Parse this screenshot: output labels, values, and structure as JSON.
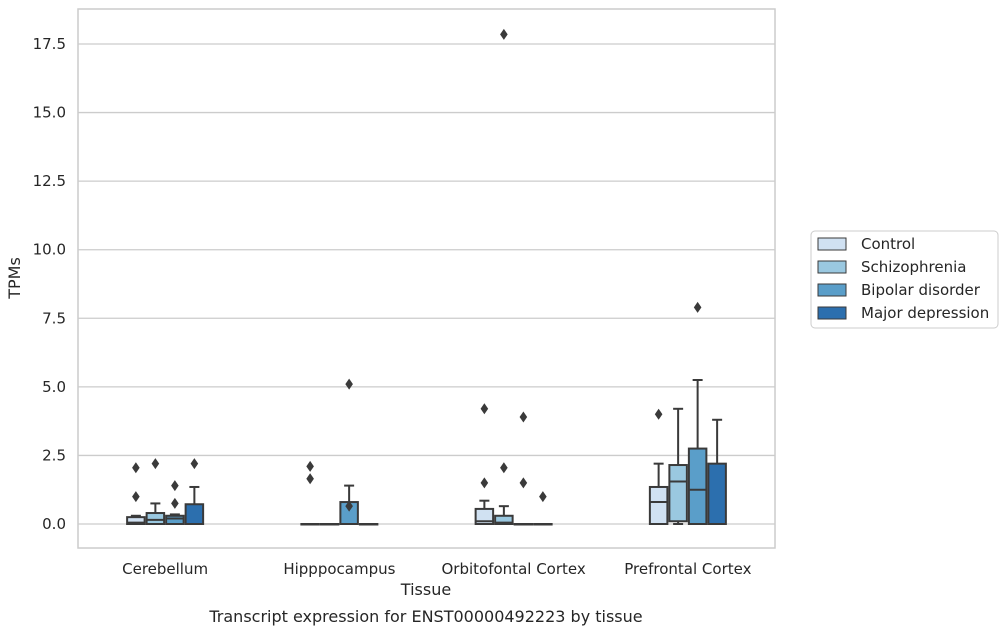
{
  "chart_data": {
    "type": "box",
    "title": "",
    "caption": "Transcript expression for ENST00000492223 by tissue",
    "xlabel": "Tissue",
    "ylabel": "TPMs",
    "ylim": [
      -0.85,
      18.7
    ],
    "yticks": [
      "0.0",
      "2.5",
      "5.0",
      "7.5",
      "10.0",
      "12.5",
      "15.0",
      "17.5"
    ],
    "ytick_values": [
      0,
      2.5,
      5,
      7.5,
      10,
      12.5,
      15,
      17.5
    ],
    "grid": "horizontal",
    "legend_position": "right",
    "categories": [
      "Cerebellum",
      "Hipppocampus",
      "Orbitofontal Cortex",
      "Prefrontal Cortex"
    ],
    "series": [
      {
        "name": "Control",
        "color": "#d0e1f2",
        "boxes": [
          {
            "q1": 0.0,
            "median": 0.05,
            "q3": 0.25,
            "whisker_low": 0.0,
            "whisker_high": 0.3,
            "outliers": [
              1.0,
              2.05
            ]
          },
          {
            "q1": 0.0,
            "median": 0.0,
            "q3": 0.0,
            "whisker_low": 0.0,
            "whisker_high": 0.0,
            "outliers": [
              1.65,
              2.1
            ]
          },
          {
            "q1": 0.0,
            "median": 0.1,
            "q3": 0.55,
            "whisker_low": 0.0,
            "whisker_high": 0.85,
            "outliers": [
              1.5,
              4.2
            ]
          },
          {
            "q1": 0.0,
            "median": 0.8,
            "q3": 1.35,
            "whisker_low": 0.0,
            "whisker_high": 2.2,
            "outliers": [
              4.0
            ]
          }
        ]
      },
      {
        "name": "Schizophrenia",
        "color": "#9ac8e0",
        "boxes": [
          {
            "q1": 0.0,
            "median": 0.15,
            "q3": 0.4,
            "whisker_low": 0.0,
            "whisker_high": 0.75,
            "outliers": [
              2.2
            ]
          },
          {
            "q1": 0.0,
            "median": 0.0,
            "q3": 0.0,
            "whisker_low": 0.0,
            "whisker_high": 0.0,
            "outliers": []
          },
          {
            "q1": 0.0,
            "median": 0.05,
            "q3": 0.3,
            "whisker_low": 0.0,
            "whisker_high": 0.65,
            "outliers": [
              2.05,
              17.85
            ]
          },
          {
            "q1": 0.1,
            "median": 1.55,
            "q3": 2.15,
            "whisker_low": 0.0,
            "whisker_high": 4.2,
            "outliers": []
          }
        ]
      },
      {
        "name": "Bipolar disorder",
        "color": "#5a9ec9",
        "boxes": [
          {
            "q1": 0.0,
            "median": 0.2,
            "q3": 0.3,
            "whisker_low": 0.0,
            "whisker_high": 0.35,
            "outliers": [
              0.75,
              1.4
            ]
          },
          {
            "q1": 0.0,
            "median": 0.0,
            "q3": 0.8,
            "whisker_low": 0.0,
            "whisker_high": 1.4,
            "outliers": [
              0.65,
              5.1
            ]
          },
          {
            "q1": 0.0,
            "median": 0.0,
            "q3": 0.0,
            "whisker_low": 0.0,
            "whisker_high": 0.0,
            "outliers": [
              1.5,
              3.9
            ]
          },
          {
            "q1": 0.0,
            "median": 1.25,
            "q3": 2.75,
            "whisker_low": 0.0,
            "whisker_high": 5.25,
            "outliers": [
              7.9
            ]
          }
        ]
      },
      {
        "name": "Major depression",
        "color": "#2c6fae",
        "boxes": [
          {
            "q1": 0.0,
            "median": 0.0,
            "q3": 0.72,
            "whisker_low": 0.0,
            "whisker_high": 1.35,
            "outliers": [
              2.2
            ]
          },
          {
            "q1": 0.0,
            "median": 0.0,
            "q3": 0.0,
            "whisker_low": 0.0,
            "whisker_high": 0.0,
            "outliers": []
          },
          {
            "q1": 0.0,
            "median": 0.0,
            "q3": 0.0,
            "whisker_low": 0.0,
            "whisker_high": 0.0,
            "outliers": [
              1.0
            ]
          },
          {
            "q1": 0.0,
            "median": 0.0,
            "q3": 2.2,
            "whisker_low": 0.0,
            "whisker_high": 3.8,
            "outliers": []
          }
        ]
      }
    ]
  }
}
